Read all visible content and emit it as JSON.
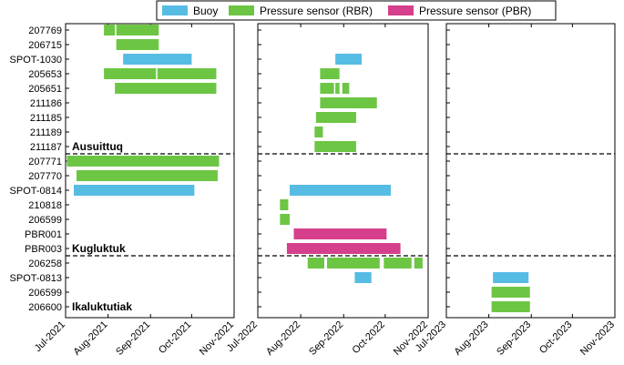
{
  "chart_data": {
    "type": "gantt",
    "title": "",
    "legend": {
      "placement": "top-center",
      "items": [
        {
          "name": "Buoy",
          "color": "#56BCE3"
        },
        {
          "name": "Pressure sensor (RBR)",
          "color": "#6CC644"
        },
        {
          "name": "Pressure sensor (PBR)",
          "color": "#D63F8C"
        }
      ]
    },
    "rows": [
      "207769",
      "206715",
      "SPOT-1030",
      "205653",
      "205651",
      "211186",
      "211185",
      "211189",
      "211187",
      "207771",
      "207770",
      "SPOT-0814",
      "210818",
      "206599",
      "PBR001",
      "PBR003",
      "206258",
      "SPOT-0813",
      "206599",
      "206600"
    ],
    "sites": [
      {
        "name": "Ausuittuq",
        "first_row": 0,
        "last_row": 8
      },
      {
        "name": "Kugluktuk",
        "first_row": 9,
        "last_row": 15
      },
      {
        "name": "Ikaluktutiak",
        "first_row": 16,
        "last_row": 19
      }
    ],
    "panels": [
      {
        "xlim": [
          "2021-07-01",
          "2021-11-01"
        ],
        "ticks": [
          "Jul-2021",
          "Aug-2021",
          "Sep-2021",
          "Oct-2021",
          "Nov-2021"
        ],
        "tick_dates": [
          "2021-07-01",
          "2021-08-01",
          "2021-09-01",
          "2021-10-01",
          "2021-11-01"
        ]
      },
      {
        "xlim": [
          "2022-07-01",
          "2022-11-01"
        ],
        "ticks": [
          "Jul-2022",
          "Aug-2022",
          "Sep-2022",
          "Oct-2022",
          "Nov-2022"
        ],
        "tick_dates": [
          "2022-07-01",
          "2022-08-01",
          "2022-09-01",
          "2022-10-01",
          "2022-11-01"
        ]
      },
      {
        "xlim": [
          "2023-07-01",
          "2023-11-01"
        ],
        "ticks": [
          "Jul-2023",
          "Aug-2023",
          "Sep-2023",
          "Oct-2023",
          "Nov-2023"
        ],
        "tick_dates": [
          "2023-07-01",
          "2023-08-01",
          "2023-09-01",
          "2023-10-01",
          "2023-11-01"
        ]
      }
    ],
    "segments": [
      {
        "row": 0,
        "type": 1,
        "start": "2021-07-29",
        "end": "2021-08-06"
      },
      {
        "row": 0,
        "type": 1,
        "start": "2021-08-07",
        "end": "2021-09-07"
      },
      {
        "row": 1,
        "type": 1,
        "start": "2021-08-07",
        "end": "2021-09-07"
      },
      {
        "row": 2,
        "type": 0,
        "start": "2021-08-12",
        "end": "2021-10-01"
      },
      {
        "row": 3,
        "type": 1,
        "start": "2021-07-29",
        "end": "2021-09-05"
      },
      {
        "row": 3,
        "type": 1,
        "start": "2021-09-06",
        "end": "2021-10-19"
      },
      {
        "row": 4,
        "type": 1,
        "start": "2021-08-06",
        "end": "2021-10-19"
      },
      {
        "row": 9,
        "type": 1,
        "start": "2021-07-02",
        "end": "2021-10-21"
      },
      {
        "row": 10,
        "type": 1,
        "start": "2021-07-09",
        "end": "2021-10-20"
      },
      {
        "row": 11,
        "type": 0,
        "start": "2021-07-07",
        "end": "2021-10-03"
      },
      {
        "row": 2,
        "type": 0,
        "start": "2022-08-26",
        "end": "2022-09-14"
      },
      {
        "row": 3,
        "type": 1,
        "start": "2022-08-15",
        "end": "2022-08-29"
      },
      {
        "row": 4,
        "type": 1,
        "start": "2022-08-15",
        "end": "2022-08-25"
      },
      {
        "row": 4,
        "type": 1,
        "start": "2022-08-26",
        "end": "2022-08-29"
      },
      {
        "row": 4,
        "type": 1,
        "start": "2022-08-31",
        "end": "2022-09-05"
      },
      {
        "row": 5,
        "type": 1,
        "start": "2022-08-15",
        "end": "2022-09-25"
      },
      {
        "row": 6,
        "type": 1,
        "start": "2022-08-12",
        "end": "2022-09-10"
      },
      {
        "row": 7,
        "type": 1,
        "start": "2022-08-11",
        "end": "2022-08-17"
      },
      {
        "row": 8,
        "type": 1,
        "start": "2022-08-11",
        "end": "2022-09-10"
      },
      {
        "row": 11,
        "type": 0,
        "start": "2022-07-24",
        "end": "2022-10-05"
      },
      {
        "row": 12,
        "type": 1,
        "start": "2022-07-17",
        "end": "2022-07-23"
      },
      {
        "row": 13,
        "type": 1,
        "start": "2022-07-17",
        "end": "2022-07-24"
      },
      {
        "row": 14,
        "type": 2,
        "start": "2022-07-27",
        "end": "2022-10-02"
      },
      {
        "row": 15,
        "type": 2,
        "start": "2022-07-22",
        "end": "2022-10-12"
      },
      {
        "row": 16,
        "type": 1,
        "start": "2022-08-06",
        "end": "2022-08-18"
      },
      {
        "row": 16,
        "type": 1,
        "start": "2022-08-20",
        "end": "2022-09-27"
      },
      {
        "row": 16,
        "type": 1,
        "start": "2022-09-30",
        "end": "2022-10-20"
      },
      {
        "row": 16,
        "type": 1,
        "start": "2022-10-22",
        "end": "2022-10-28"
      },
      {
        "row": 17,
        "type": 0,
        "start": "2022-09-09",
        "end": "2022-09-21"
      },
      {
        "row": 17,
        "type": 0,
        "start": "2023-08-04",
        "end": "2023-08-30"
      },
      {
        "row": 18,
        "type": 1,
        "start": "2023-08-03",
        "end": "2023-08-31"
      },
      {
        "row": 19,
        "type": 1,
        "start": "2023-08-03",
        "end": "2023-08-31"
      }
    ]
  }
}
